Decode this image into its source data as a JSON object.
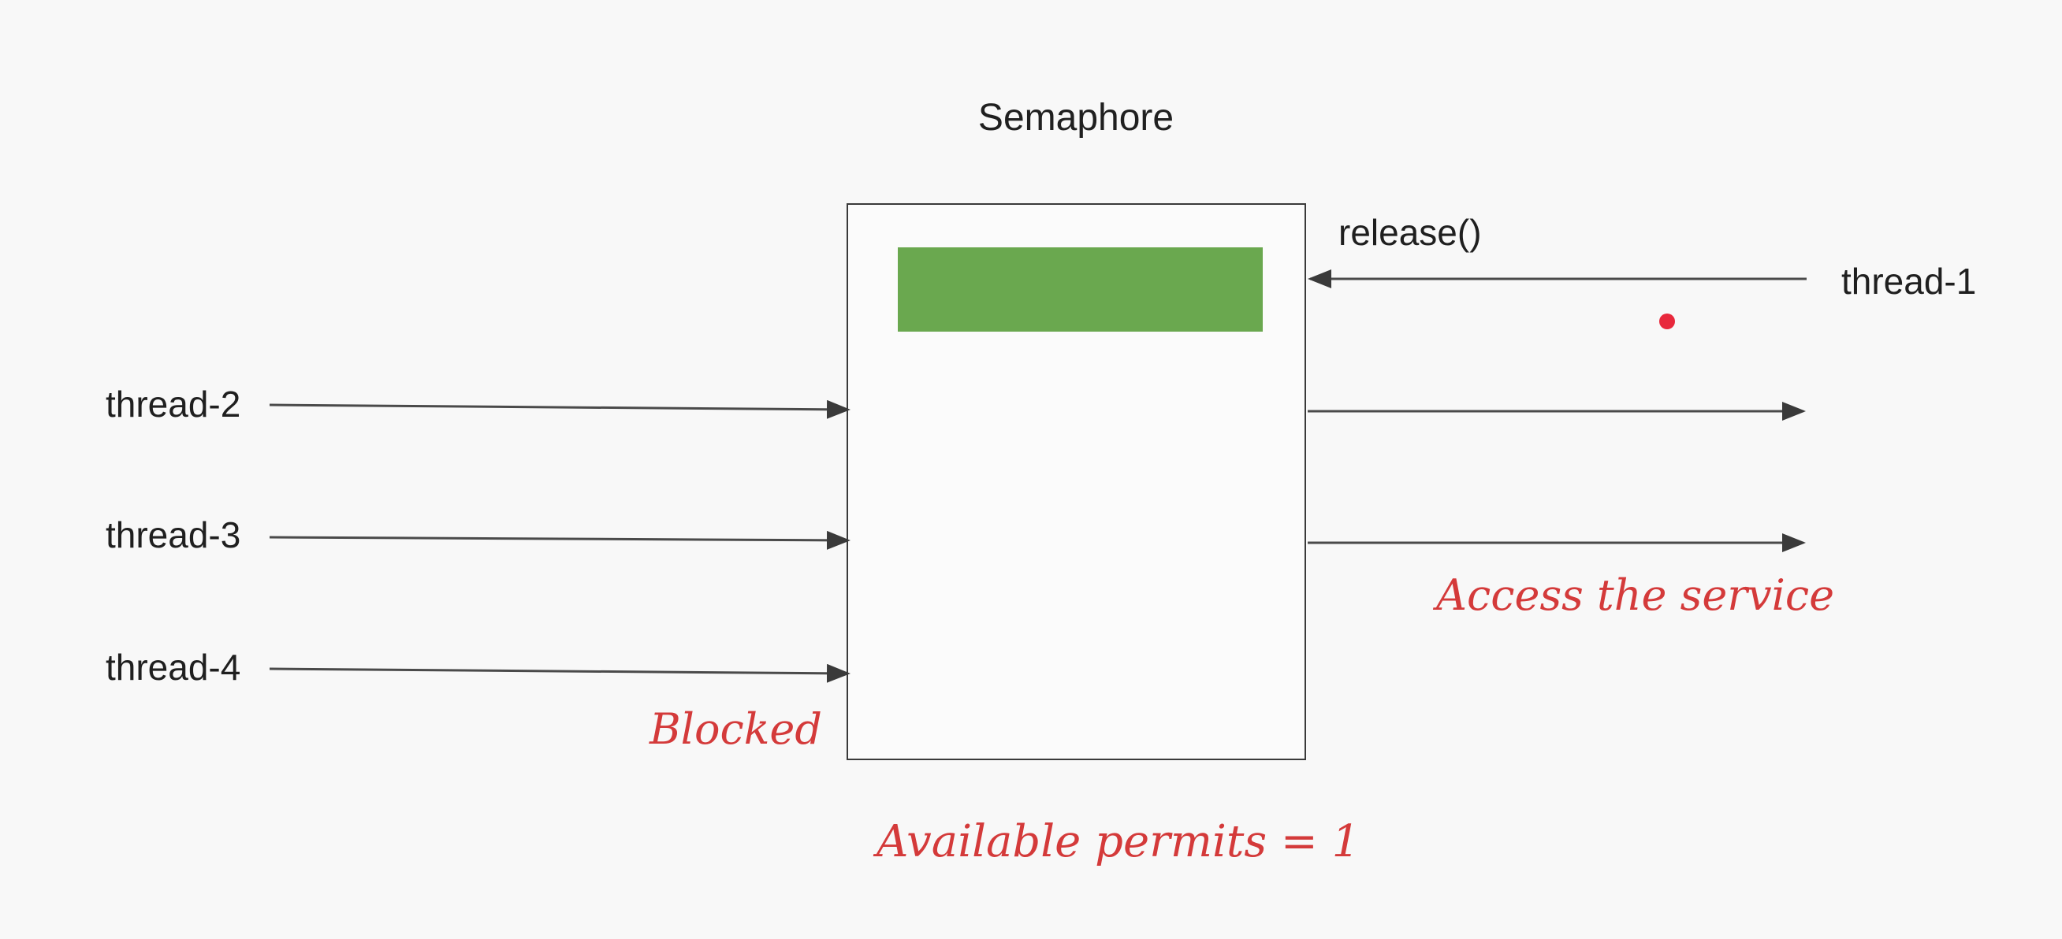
{
  "diagram": {
    "title": "Semaphore",
    "release_label": "release()",
    "threads": {
      "thread_1": "thread-1",
      "thread_2": "thread-2",
      "thread_3": "thread-3",
      "thread_4": "thread-4"
    },
    "annotations": {
      "blocked": "Blocked",
      "access": "Access the service",
      "permits": "Available permits = 1"
    },
    "colors": {
      "permit_fill": "#6aa84f",
      "annotation_text": "#d43a3a",
      "pointer_dot": "#e8283c"
    }
  }
}
